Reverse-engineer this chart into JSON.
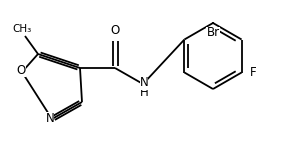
{
  "background_color": "#ffffff",
  "bond_color": "#000000",
  "figsize": [
    2.86,
    1.44
  ],
  "dpi": 100,
  "atoms": {
    "N": "N",
    "O_ring": "O",
    "O_carbonyl": "O",
    "NH": "H\nN",
    "Br": "Br",
    "F": "F"
  },
  "font_size": 8.5
}
